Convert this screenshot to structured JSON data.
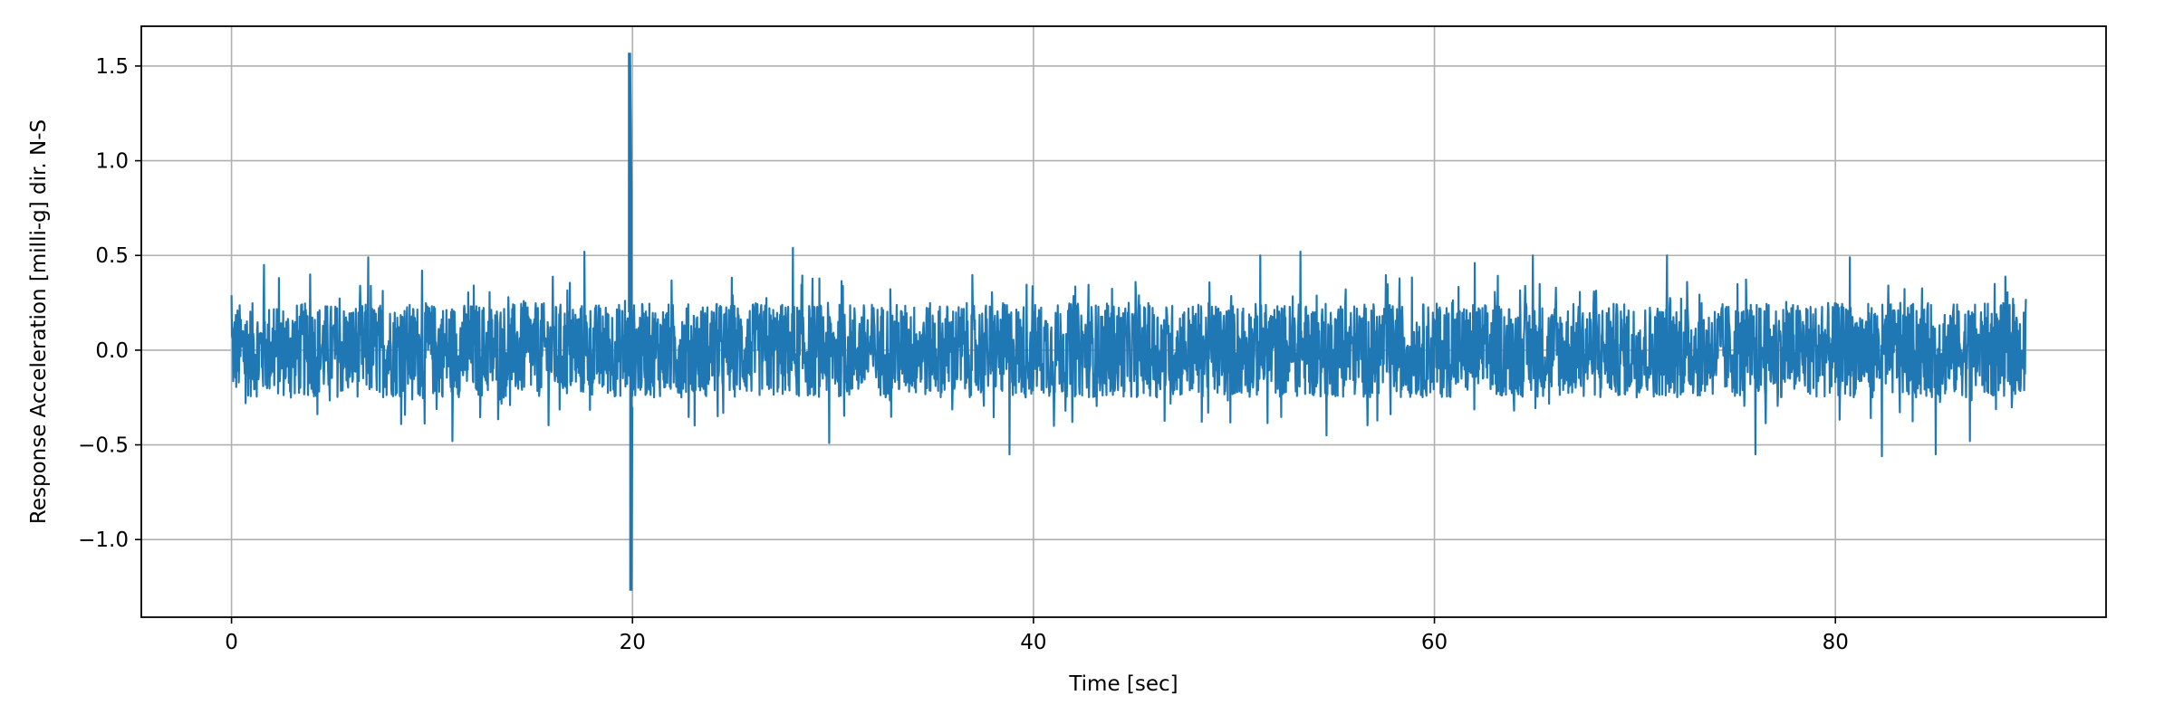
{
  "chart_data": {
    "type": "line",
    "title": "",
    "xlabel": "Time [sec]",
    "ylabel": "Response Acceleration [milli-g] dir. N-S",
    "xlim": [
      -4.5,
      93.5
    ],
    "ylim": [
      -1.41,
      1.71
    ],
    "x_ticks": [
      0,
      20,
      40,
      60,
      80
    ],
    "x_tick_labels": [
      "0",
      "20",
      "40",
      "60",
      "80"
    ],
    "y_ticks": [
      -1.0,
      -0.5,
      0.0,
      0.5,
      1.0,
      1.5
    ],
    "y_tick_labels": [
      "−1.0",
      "−0.5",
      "0.0",
      "0.5",
      "1.0",
      "1.5"
    ],
    "grid": true,
    "line_color": "#1f77b4",
    "series": [
      {
        "x_start": 0,
        "x_end": 89.5,
        "baseline_amplitude": 0.25,
        "peak_amplitude": 0.55,
        "spike": {
          "x": 19.85,
          "max": 1.57,
          "min": -1.27
        },
        "envelope": [
          {
            "x": 0.0,
            "max": 0.29,
            "min": -0.38
          },
          {
            "x": 0.7,
            "max": 0.52,
            "min": -0.28
          },
          {
            "x": 1.6,
            "max": 0.45,
            "min": -0.52
          },
          {
            "x": 3.9,
            "max": 0.4,
            "min": -0.52
          },
          {
            "x": 6.8,
            "max": 0.49,
            "min": -0.36
          },
          {
            "x": 9.5,
            "max": 0.42,
            "min": -0.52
          },
          {
            "x": 11.0,
            "max": 0.45,
            "min": -0.48
          },
          {
            "x": 17.6,
            "max": 0.52,
            "min": -0.4
          },
          {
            "x": 28.0,
            "max": 0.54,
            "min": -0.45
          },
          {
            "x": 29.8,
            "max": 0.48,
            "min": -0.49
          },
          {
            "x": 38.8,
            "max": 0.46,
            "min": -0.55
          },
          {
            "x": 41.0,
            "max": 0.5,
            "min": -0.4
          },
          {
            "x": 51.3,
            "max": 0.5,
            "min": -0.42
          },
          {
            "x": 53.3,
            "max": 0.52,
            "min": -0.38
          },
          {
            "x": 54.6,
            "max": 0.48,
            "min": -0.45
          },
          {
            "x": 62.0,
            "max": 0.46,
            "min": -0.5
          },
          {
            "x": 64.9,
            "max": 0.5,
            "min": -0.52
          },
          {
            "x": 71.6,
            "max": 0.5,
            "min": -0.42
          },
          {
            "x": 76.0,
            "max": 0.48,
            "min": -0.55
          },
          {
            "x": 80.7,
            "max": 0.49,
            "min": -0.52
          },
          {
            "x": 82.3,
            "max": 0.46,
            "min": -0.56
          },
          {
            "x": 85.0,
            "max": 0.47,
            "min": -0.55
          },
          {
            "x": 86.7,
            "max": 0.46,
            "min": -0.48
          },
          {
            "x": 89.5,
            "max": 0.27,
            "min": -0.26
          }
        ]
      }
    ]
  }
}
